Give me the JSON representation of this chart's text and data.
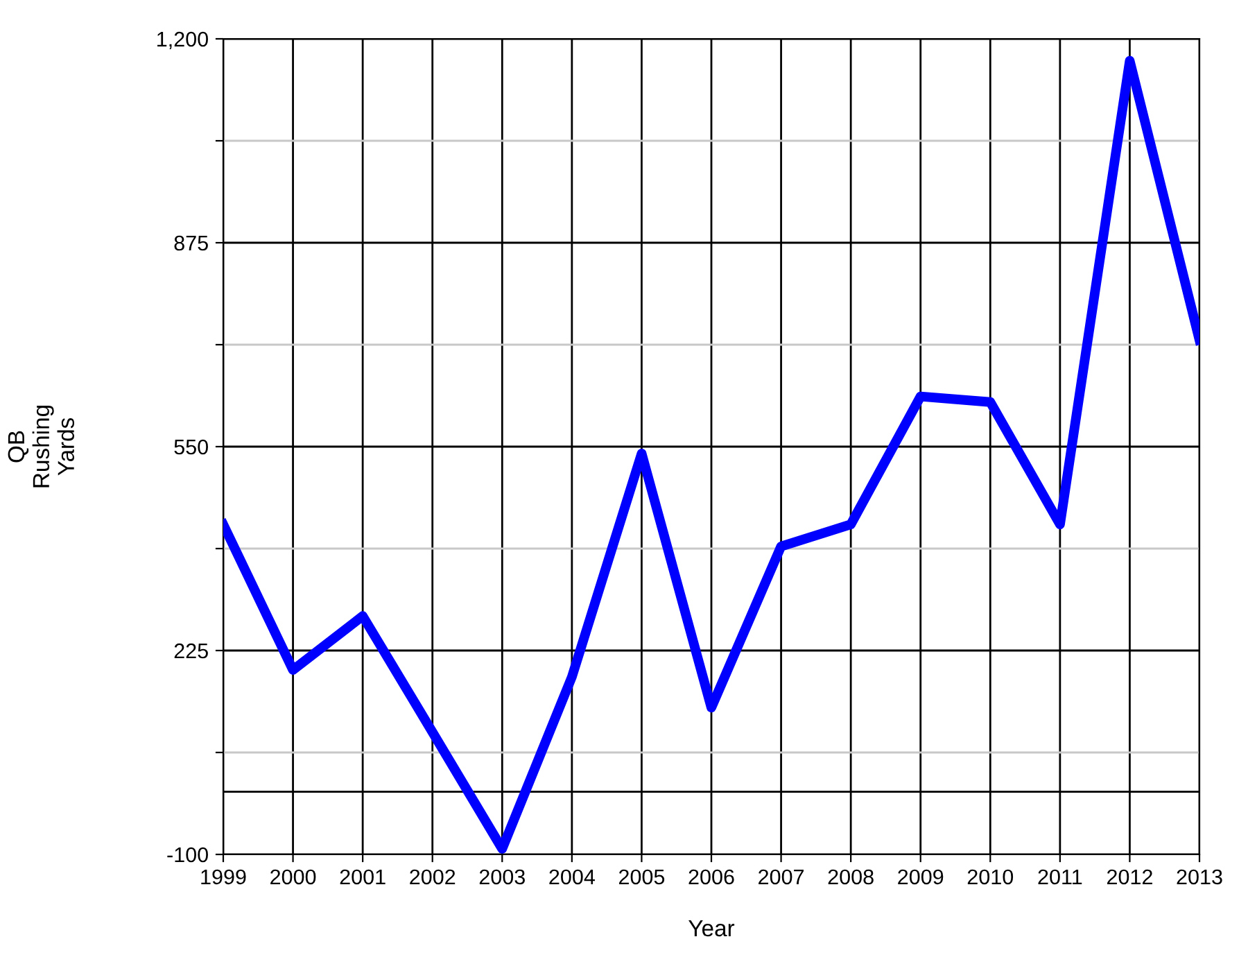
{
  "chart_data": {
    "type": "line",
    "xlabel": "Year",
    "ylabel": "QB\nRushing\nYards",
    "categories": [
      "1999",
      "2000",
      "2001",
      "2002",
      "2003",
      "2004",
      "2005",
      "2006",
      "2007",
      "2008",
      "2009",
      "2010",
      "2011",
      "2012",
      "2013"
    ],
    "series": [
      {
        "color": "#0000ff",
        "values": [
          426,
          194,
          280,
          95,
          -91,
          183,
          539,
          134,
          391,
          426,
          630,
          621,
          426,
          1165,
          720
        ]
      }
    ],
    "ylim": [
      -100,
      1200
    ],
    "yticks": [
      -100,
      {
        "value": 62.5,
        "label": null
      },
      225,
      {
        "value": 387.5,
        "label": null
      },
      550,
      {
        "value": 712.5,
        "label": null
      },
      875,
      {
        "value": 1037.5,
        "label": null
      },
      {
        "value": 1200,
        "label": "1,200"
      }
    ],
    "ref_lines": [
      {
        "axis": "y",
        "value": 0,
        "color": "#000000"
      }
    ],
    "grid": true,
    "marker": "none",
    "line_style": "solid"
  }
}
